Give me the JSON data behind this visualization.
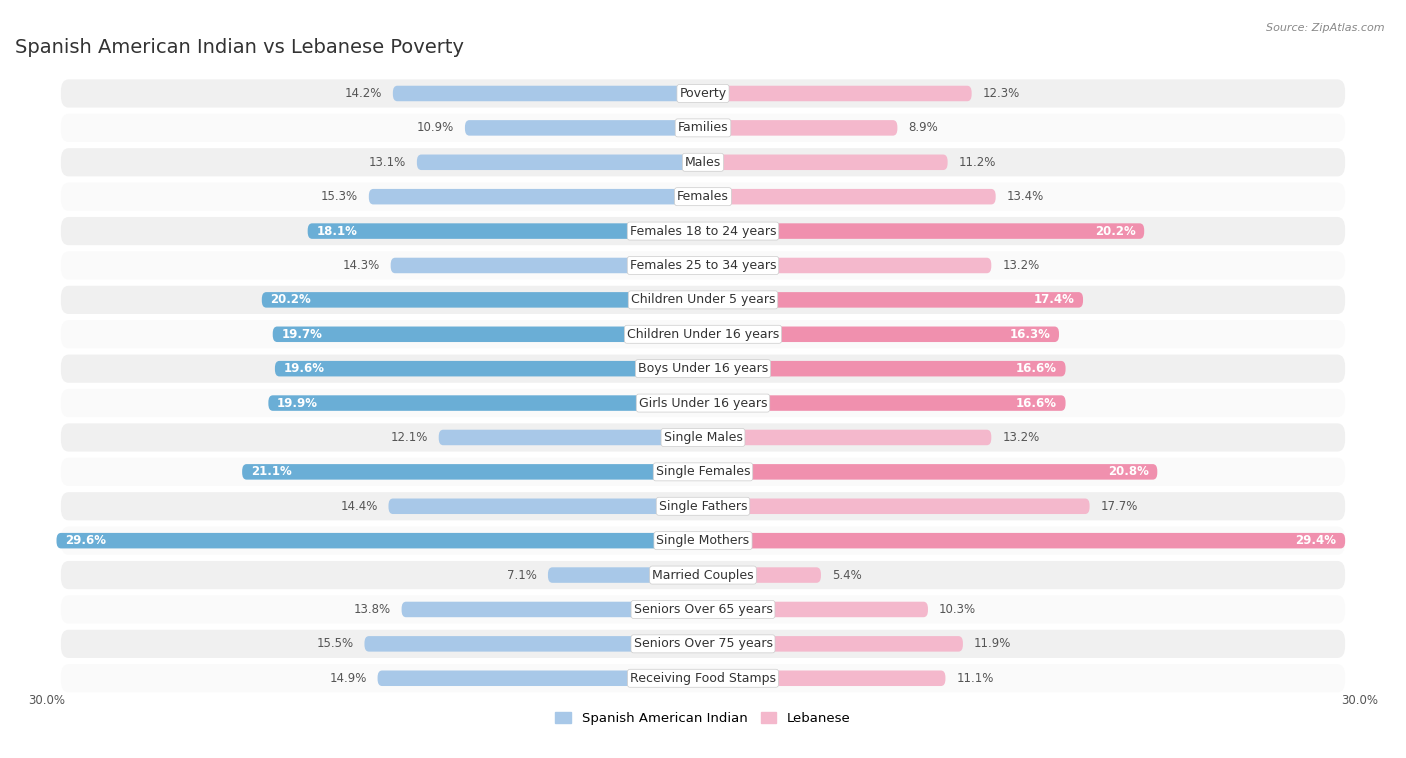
{
  "title": "Spanish American Indian vs Lebanese Poverty",
  "source": "Source: ZipAtlas.com",
  "categories": [
    "Poverty",
    "Families",
    "Males",
    "Females",
    "Females 18 to 24 years",
    "Females 25 to 34 years",
    "Children Under 5 years",
    "Children Under 16 years",
    "Boys Under 16 years",
    "Girls Under 16 years",
    "Single Males",
    "Single Females",
    "Single Fathers",
    "Single Mothers",
    "Married Couples",
    "Seniors Over 65 years",
    "Seniors Over 75 years",
    "Receiving Food Stamps"
  ],
  "spanish_values": [
    14.2,
    10.9,
    13.1,
    15.3,
    18.1,
    14.3,
    20.2,
    19.7,
    19.6,
    19.9,
    12.1,
    21.1,
    14.4,
    29.6,
    7.1,
    13.8,
    15.5,
    14.9
  ],
  "lebanese_values": [
    12.3,
    8.9,
    11.2,
    13.4,
    20.2,
    13.2,
    17.4,
    16.3,
    16.6,
    16.6,
    13.2,
    20.8,
    17.7,
    29.4,
    5.4,
    10.3,
    11.9,
    11.1
  ],
  "spanish_color_light": "#a8c8e8",
  "spanish_color_dark": "#6aaed6",
  "lebanese_color_light": "#f4b8cc",
  "lebanese_color_dark": "#f090ae",
  "highlight_rows": [
    4,
    6,
    7,
    8,
    9,
    11,
    13
  ],
  "bg_color": "#ffffff",
  "row_bg_even": "#f0f0f0",
  "row_bg_odd": "#fafafa",
  "xlim": 30.0,
  "legend_labels": [
    "Spanish American Indian",
    "Lebanese"
  ],
  "title_fontsize": 14,
  "label_fontsize": 9,
  "value_fontsize": 8.5
}
